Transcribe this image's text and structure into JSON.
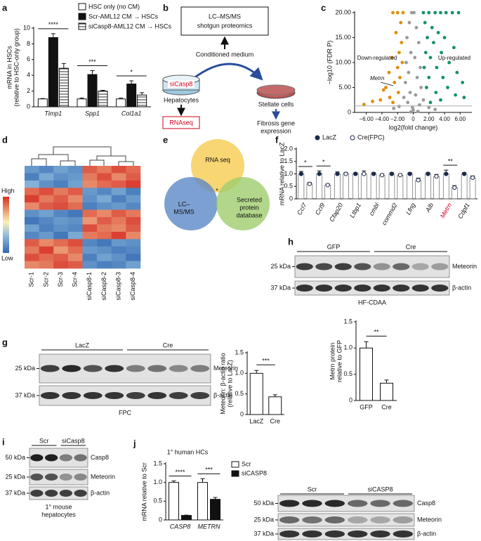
{
  "chart_data": [
    {
      "type": "bar",
      "panel": "a",
      "categories": [
        "Timp1",
        "Spp1",
        "Col1a1"
      ],
      "y_label": [
        "mRNA in HSCs",
        "(relative to HSC-only group)"
      ],
      "series": [
        {
          "name": "HSC only (no CM)",
          "color": "#ffffff",
          "values": [
            1.0,
            1.0,
            1.0
          ],
          "errors": [
            0.05,
            0.12,
            0.1
          ]
        },
        {
          "name": "Scr-AML12 CM → HSCs",
          "color": "#111111",
          "values": [
            8.8,
            4.1,
            2.9
          ],
          "errors": [
            0.5,
            0.5,
            0.4
          ]
        },
        {
          "name": "siCasp8-AML12 CM → HSCs",
          "color": "#ffffff",
          "pattern": "hatch",
          "values": [
            4.9,
            2.0,
            1.5
          ],
          "errors": [
            0.6,
            0.1,
            0.3
          ]
        }
      ],
      "significance": [
        "****",
        "***",
        "*"
      ],
      "ylim": [
        0,
        10
      ],
      "yticks": [
        0,
        2,
        4,
        6,
        8,
        10
      ]
    },
    {
      "type": "scatter",
      "panel": "c",
      "x_label": "log2(fold change)",
      "y_label": "−log10 (FDR P)",
      "annotations": [
        "Down-regulated",
        "Up-regulated",
        "Metrn"
      ],
      "hline": 1.3,
      "series": [
        {
          "color": "#9a9a9a",
          "x": [
            -0.2,
            0.1,
            -0.5,
            0.4,
            -0.8,
            0.7,
            -0.3,
            0.2,
            -0.9,
            0.9,
            -0.6,
            0.5,
            -1.0,
            1.0,
            -0.4,
            0.3,
            -1.2,
            1.3,
            -0.7,
            0.8,
            -0.1,
            0.0,
            -1.8,
            2.0,
            -2.5,
            2.8,
            0.6,
            -0.3
          ],
          "y": [
            20,
            20,
            18,
            17,
            15,
            14,
            12,
            11,
            10,
            9,
            8,
            7,
            6,
            5,
            4,
            3.5,
            3,
            2.5,
            2,
            1.5,
            1,
            0.5,
            1.2,
            1.0,
            0.8,
            0.6,
            0.2,
            0.1
          ]
        },
        {
          "color": "#e08c0a",
          "x": [
            -1.3,
            -2.0,
            -2.6,
            -1.6,
            -2.2,
            -1.5,
            -1.8,
            -2.7,
            -1.4,
            -2.0,
            -3.1,
            -1.7,
            -2.4,
            -3.5,
            -1.9,
            -3.0,
            -4.2,
            -5.2,
            -6.3,
            -2.6,
            -3.8
          ],
          "y": [
            20,
            20,
            20,
            18,
            16,
            14,
            12,
            11,
            10,
            9,
            8,
            7,
            6,
            5,
            4,
            3,
            2.5,
            2.2,
            1.6,
            2,
            4.5
          ]
        },
        {
          "color": "#12916a",
          "x": [
            1.3,
            2.0,
            2.8,
            3.5,
            4.2,
            5.0,
            5.8,
            1.5,
            2.4,
            3.2,
            1.8,
            4.0,
            2.6,
            5.2,
            1.6,
            3.6,
            2.2,
            4.6,
            1.4,
            3.0,
            5.6,
            2.0,
            3.8,
            6.3,
            1.7,
            4.4,
            2.9,
            5.4,
            6.5,
            3.5,
            2.2
          ],
          "y": [
            20,
            20,
            20,
            20,
            20,
            20,
            20,
            18,
            17,
            16,
            15,
            15,
            14,
            13,
            12,
            12,
            11,
            10,
            9,
            9,
            8,
            7,
            7,
            6,
            5,
            5,
            4,
            3.5,
            3,
            2.5,
            2
          ]
        }
      ],
      "xlim": [
        -7.5,
        7.5
      ],
      "xticks": [
        {
          "value": -6,
          "label": "−6.00"
        },
        {
          "value": -4,
          "label": "−4.00"
        },
        {
          "value": -2,
          "label": "−2.00"
        },
        0,
        {
          "value": 2,
          "label": "2.00"
        },
        {
          "value": 4,
          "label": "4.00"
        },
        {
          "value": 6,
          "label": "6.00"
        }
      ],
      "ylim": [
        0,
        20
      ],
      "yticks": [
        0,
        {
          "value": 5,
          "label": "5.00"
        },
        {
          "value": 10,
          "label": "10.00"
        },
        {
          "value": 15,
          "label": "15.00"
        },
        {
          "value": 20,
          "label": "20.00"
        }
      ]
    },
    {
      "type": "heatmap",
      "panel": "d",
      "columns": [
        "Scr-1",
        "Scr-2",
        "Scr-3",
        "Scr-4",
        "siCasp8-1",
        "siCasp8-2",
        "siCasp8-3",
        "siCasp8-4"
      ],
      "scale_labels": [
        "High",
        "Low"
      ],
      "vlim": [
        -1.5,
        1.5
      ],
      "values": [
        [
          -0.9,
          -1.1,
          -0.8,
          -1.0,
          1.2,
          1.0,
          1.3,
          1.1
        ],
        [
          -1.2,
          -0.7,
          -1.0,
          -0.9,
          1.0,
          1.3,
          0.9,
          1.2
        ],
        [
          -0.6,
          -1.0,
          -1.2,
          -0.8,
          0.9,
          1.1,
          1.2,
          1.4
        ],
        [
          1.1,
          1.3,
          1.0,
          1.2,
          -0.9,
          -1.1,
          -0.8,
          -1.2
        ],
        [
          1.4,
          1.0,
          1.2,
          0.9,
          -1.0,
          -0.7,
          -1.2,
          -0.9
        ],
        [
          0.9,
          1.2,
          1.3,
          1.1,
          -1.2,
          -1.0,
          -0.9,
          -1.1
        ],
        [
          -1.0,
          -0.8,
          -1.1,
          -1.3,
          1.1,
          0.9,
          1.2,
          1.0
        ],
        [
          -1.3,
          -1.1,
          -0.9,
          -1.0,
          0.8,
          1.2,
          1.0,
          1.3
        ],
        [
          -0.8,
          -1.2,
          -1.0,
          -1.1,
          1.3,
          1.0,
          0.9,
          1.2
        ],
        [
          -1.1,
          -0.9,
          -1.3,
          -0.7,
          1.0,
          1.1,
          1.4,
          0.9
        ],
        [
          1.2,
          0.9,
          1.1,
          1.3,
          -1.1,
          -1.3,
          -0.9,
          -1.0
        ],
        [
          1.0,
          1.4,
          0.8,
          1.1,
          -0.9,
          -1.0,
          -1.2,
          -1.1
        ],
        [
          1.3,
          1.1,
          1.2,
          0.9,
          -1.2,
          -0.8,
          -1.0,
          -1.3
        ],
        [
          0.9,
          1.0,
          1.3,
          1.2,
          -1.0,
          -1.2,
          -1.1,
          -0.8
        ]
      ]
    },
    {
      "type": "bar",
      "panel": "f",
      "categories": [
        "Ccl7",
        "Ccl9",
        "Cfap20",
        "Ltbp1",
        "cmbl",
        "commd2",
        "Lfng",
        "Alb",
        "Metrn",
        "Cdpf1"
      ],
      "category_colors": [
        "#111111",
        "#111111",
        "#111111",
        "#111111",
        "#111111",
        "#111111",
        "#111111",
        "#111111",
        "#d0021b",
        "#111111"
      ],
      "y_label": [
        "mRNA relative to LacZ"
      ],
      "series": [
        {
          "name": "LacZ",
          "color": "#1b2b4b",
          "values": [
            1.0,
            1.0,
            1.0,
            1.0,
            1.0,
            1.0,
            1.0,
            1.0,
            1.0,
            1.0
          ],
          "errors": [
            0.1,
            0.12,
            0.08,
            0.05,
            0.05,
            0.05,
            0.05,
            0.06,
            0.15,
            0.05
          ]
        },
        {
          "name": "Cre(FPC)",
          "color": "#ffffff",
          "values": [
            0.6,
            0.55,
            1.0,
            1.0,
            0.95,
            0.95,
            0.75,
            0.9,
            0.45,
            0.85
          ],
          "errors": [
            0.06,
            0.05,
            0.06,
            0.12,
            0.05,
            0.05,
            0.08,
            0.08,
            0.08,
            0.07
          ]
        }
      ],
      "significance": [
        "*",
        "*",
        null,
        null,
        null,
        null,
        null,
        null,
        "**",
        null
      ],
      "ylim": [
        0,
        2
      ],
      "yticks": [
        0,
        0.5,
        {
          "value": 1,
          "label": "1.0"
        },
        1.5,
        {
          "value": 2,
          "label": "2.0"
        }
      ]
    },
    {
      "type": "bar",
      "categories": [
        "LacZ",
        "Cre"
      ],
      "values": [
        1.0,
        0.43
      ],
      "errors": [
        0.07,
        0.05
      ],
      "color": "#ffffff",
      "y_label": [
        "Meteorin: β-actin ratio",
        "(relative to LacZ)"
      ],
      "comparison": "***",
      "ylim": [
        0,
        1.5
      ],
      "yticks": [
        0,
        0.5,
        {
          "value": 1,
          "label": "1.0"
        },
        1.5
      ]
    },
    {
      "type": "bar",
      "categories": [
        "GFP",
        "Cre"
      ],
      "values": [
        1.0,
        0.33
      ],
      "errors": [
        0.12,
        0.06
      ],
      "color": "#ffffff",
      "y_label": [
        "Metrn protein",
        "relative to GFP"
      ],
      "comparison": "**",
      "ylim": [
        0,
        1.5
      ],
      "yticks": [
        0,
        0.5,
        {
          "value": 1,
          "label": "1.0"
        },
        1.5
      ]
    },
    {
      "type": "bar",
      "panel": "j",
      "title": "1° human HCs",
      "categories": [
        "CASP8",
        "METRN"
      ],
      "y_label": [
        "mRNA relative to Scr"
      ],
      "series": [
        {
          "name": "Scr",
          "color": "#ffffff",
          "values": [
            1.0,
            1.0
          ],
          "errors": [
            0.04,
            0.1
          ]
        },
        {
          "name": "siCASP8",
          "color": "#111111",
          "values": [
            0.12,
            0.55
          ],
          "errors": [
            0.01,
            0.05
          ]
        }
      ],
      "significance": [
        "****",
        "***"
      ],
      "ylim": [
        0,
        1.5
      ],
      "yticks": [
        0,
        0.5,
        {
          "value": 1,
          "label": "1.0"
        },
        1.5
      ]
    }
  ],
  "diagrams": {
    "schematic": {
      "panel": "b",
      "proteomics": [
        "LC–MS/MS",
        "shotgun proteomics"
      ],
      "medium": "Conditioned medium",
      "treatment": "siCasp8",
      "source_cells": "Hepatocytes",
      "target_cells": "Stellate cells",
      "rnaseq": "RNAseq",
      "readout": [
        "Fibrosis gene",
        "expression"
      ]
    },
    "venn": {
      "panel": "e",
      "sets": [
        [
          "RNA seq"
        ],
        [
          "LC–",
          "MS/MS"
        ],
        [
          "Secreted",
          "protein",
          "database"
        ]
      ],
      "intersection": "*"
    },
    "blots": [
      {
        "panel": "g",
        "groups": [
          "LacZ",
          "Cre"
        ],
        "markers": [
          "25 kDa",
          "37 kDa"
        ],
        "proteins": [
          "Meteorin",
          "β-actin"
        ],
        "caption": [
          "FPC"
        ]
      },
      {
        "panel": "h",
        "groups": [
          "GFP",
          "Cre"
        ],
        "markers": [
          "25 kDa",
          "37 kDa"
        ],
        "proteins": [
          "Meteorin",
          "β-actin"
        ],
        "caption": [
          "HF-CDAA"
        ]
      },
      {
        "panel": "i",
        "groups": [
          "Scr",
          "siCasp8"
        ],
        "markers": [
          "50 kDa",
          "25 kDa",
          "37 kDa"
        ],
        "proteins": [
          "Casp8",
          "Meteorin",
          "β-actin"
        ],
        "caption": [
          "1° mouse",
          "hepatocytes"
        ]
      },
      {
        "groups": [
          "Scr",
          "siCASP8"
        ],
        "markers": [
          "50 kDa",
          "25 kDa",
          "37 kDa"
        ],
        "proteins": [
          "Casp8",
          "Meteorin",
          "β-actin"
        ]
      }
    ]
  }
}
